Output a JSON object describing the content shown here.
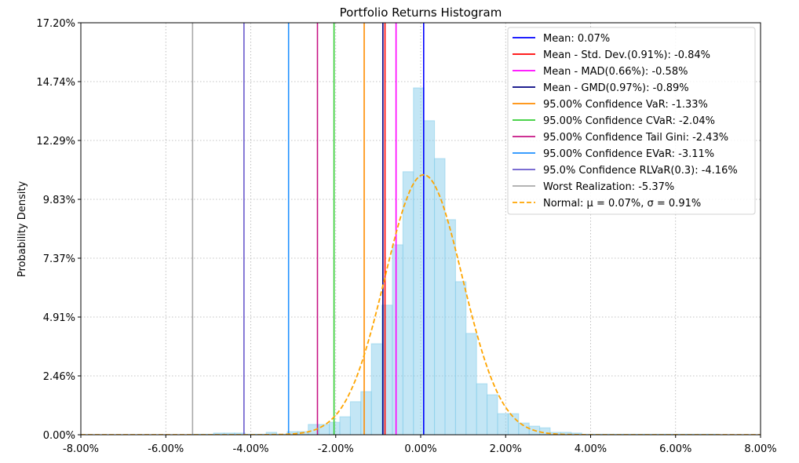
{
  "chart_data": {
    "type": "bar",
    "title": "Portfolio Returns Histogram",
    "xlabel": "",
    "ylabel": "Probability Density",
    "xlim": [
      -8,
      8
    ],
    "ylim": [
      0,
      17.2
    ],
    "grid": true,
    "legend_position": "top-right",
    "xticks": [
      "-8.00%",
      "-6.00%",
      "-4.00%",
      "-2.00%",
      "0.00%",
      "2.00%",
      "4.00%",
      "6.00%",
      "8.00%"
    ],
    "xtick_values": [
      -8,
      -6,
      -4,
      -2,
      0,
      2,
      4,
      6,
      8
    ],
    "yticks": [
      "0.00%",
      "2.46%",
      "4.91%",
      "7.37%",
      "9.83%",
      "12.29%",
      "14.74%",
      "17.20%"
    ],
    "ytick_values": [
      0,
      2.457,
      4.914,
      7.371,
      9.829,
      12.286,
      14.743,
      17.2
    ],
    "histogram": {
      "bin_start": -5.37,
      "bin_width": 0.2476,
      "color": "#87ceeb",
      "values": [
        0.02,
        0.02,
        0.07,
        0.07,
        0.07,
        0.02,
        0.02,
        0.1,
        0.02,
        0.13,
        0.13,
        0.43,
        0.43,
        0.52,
        0.75,
        1.38,
        1.8,
        3.8,
        5.41,
        7.93,
        10.98,
        14.48,
        13.11,
        11.53,
        8.98,
        6.39,
        4.23,
        2.13,
        1.67,
        0.88,
        0.88,
        0.49,
        0.36,
        0.29,
        0.1,
        0.1,
        0.07,
        0.02,
        0.02,
        0.02,
        0.02,
        0.02,
        0.02,
        0.02,
        0.02,
        0.02,
        0.02,
        0.02,
        0.02,
        0.02
      ]
    },
    "vlines": [
      {
        "label": "Mean: 0.07%",
        "x": 0.07,
        "color": "#0000ff"
      },
      {
        "label": "Mean - Std. Dev.(0.91%): -0.84%",
        "x": -0.84,
        "color": "#ff0000"
      },
      {
        "label": "Mean - MAD(0.66%): -0.58%",
        "x": -0.58,
        "color": "#ff00ff"
      },
      {
        "label": "Mean - GMD(0.97%): -0.89%",
        "x": -0.89,
        "color": "#000080"
      },
      {
        "label": "95.00% Confidence VaR: -1.33%",
        "x": -1.33,
        "color": "#ff8c00"
      },
      {
        "label": "95.00% Confidence CVaR: -2.04%",
        "x": -2.04,
        "color": "#32cd32"
      },
      {
        "label": "95.00% Confidence Tail Gini: -2.43%",
        "x": -2.43,
        "color": "#c71585"
      },
      {
        "label": "95.00% Confidence EVaR: -3.11%",
        "x": -3.11,
        "color": "#1e90ff"
      },
      {
        "label": "95.0% Confidence RLVaR(0.3): -4.16%",
        "x": -4.16,
        "color": "#6a5acd"
      },
      {
        "label": "Worst Realization: -5.37%",
        "x": -5.37,
        "color": "#a9a9a9"
      }
    ],
    "normal_curve": {
      "label": "Normal: μ = 0.07%, σ = 0.91%",
      "mu": 0.07,
      "sigma": 0.91,
      "color": "#ffa500",
      "style": "dashed"
    }
  }
}
